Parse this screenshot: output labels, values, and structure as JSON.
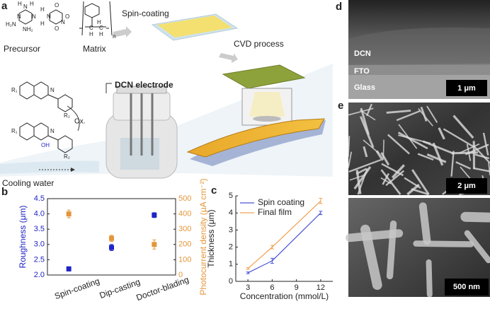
{
  "panel_labels": [
    "a",
    "b",
    "c",
    "d",
    "e"
  ],
  "panel_a": {
    "precursor": "Precursor",
    "matrix": "Matrix",
    "spin_coating": "Spin-coating",
    "cvd": "CVD process",
    "electrode": "DCN electrode",
    "oxidation": "Ox.",
    "cooling_water": "Cooling water",
    "atoms": [
      "H",
      "N",
      "H",
      "H₂N",
      "N",
      "N",
      "NH₂",
      "O",
      "N",
      "O",
      "N",
      "O",
      "H",
      "H",
      "H",
      "C",
      "C",
      "H",
      "H",
      "n",
      "R₁",
      "N",
      "R₂",
      "R₁",
      "N",
      "OH",
      "R₂"
    ]
  },
  "panel_d": {
    "layers": [
      "DCN",
      "FTO",
      "Glass"
    ],
    "scale_bar": "1 μm"
  },
  "panel_e": {
    "scale_bars": [
      "2 μm",
      "500 nm"
    ]
  },
  "chart_data": [
    {
      "type": "scatter",
      "categories": [
        "Spin-coating",
        "Dip-casting",
        "Doctor-blading"
      ],
      "ylabel": "Roughness (μm)",
      "y2label": "Photocurrent density (μA cm⁻²)",
      "ylim": [
        2.0,
        4.5
      ],
      "yticks": [
        {
          "value": 2.0,
          "label": "2.0"
        },
        {
          "value": 2.5,
          "label": "2.5"
        },
        {
          "value": 3.0,
          "label": "3.0"
        },
        {
          "value": 3.5,
          "label": "3.5"
        },
        {
          "value": 4.0,
          "label": "4.0"
        },
        {
          "value": 4.5,
          "label": "4.5"
        }
      ],
      "y2lim": [
        0,
        500
      ],
      "y2ticks": [
        0,
        100,
        200,
        300,
        400,
        500
      ],
      "series": [
        {
          "color": "#1f24c4",
          "values": [
            2.2,
            2.9,
            3.96
          ],
          "errors": [
            0.07,
            0.1,
            0.08
          ]
        },
        {
          "color": "#e3963a",
          "axis": "y2",
          "values": [
            400,
            240,
            200
          ],
          "errors": [
            25,
            20,
            30
          ]
        }
      ]
    },
    {
      "type": "line",
      "xlabel": "Concentration (mmol/L)",
      "ylabel": "Thickness (μm)",
      "x": [
        3,
        6,
        12
      ],
      "xlim": [
        1.5,
        13.5
      ],
      "xticks": [
        3,
        6,
        9,
        12
      ],
      "ylim": [
        0,
        5
      ],
      "yticks": [
        0,
        1,
        2,
        3,
        4,
        5
      ],
      "series": [
        {
          "name": "Spin coating",
          "color": "#4b55d6",
          "values": [
            0.5,
            1.2,
            4.0
          ],
          "errors": [
            0.05,
            0.15,
            0.1
          ]
        },
        {
          "name": "Final film",
          "color": "#f0a050",
          "values": [
            0.75,
            2.0,
            4.7
          ],
          "errors": [
            0.05,
            0.1,
            0.15
          ]
        }
      ]
    }
  ]
}
